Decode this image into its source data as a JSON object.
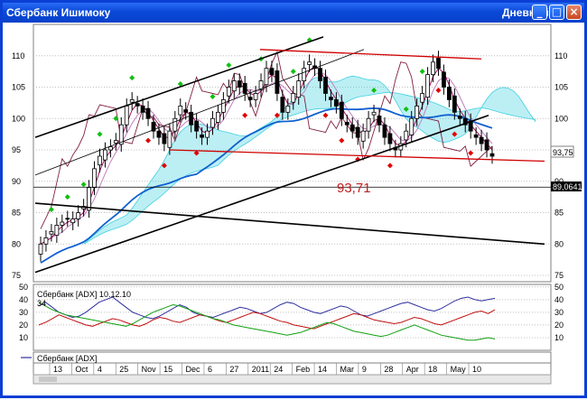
{
  "window": {
    "title": "Сбербанк Ишимоку",
    "period": "Дневной",
    "buttons": [
      {
        "name": "minimize-button",
        "glyph": "_"
      },
      {
        "name": "maximize-button",
        "glyph": "□"
      },
      {
        "name": "close-button",
        "glyph": "×"
      }
    ]
  },
  "chart_data": [
    {
      "type": "candlestick",
      "panel": "price",
      "y_ticks": [
        75,
        80,
        85,
        90,
        95,
        100,
        105,
        110
      ],
      "ylim": [
        74,
        115
      ],
      "price_label_left": "93,71",
      "last_price_label": "93,75",
      "hline_label": "89,0641",
      "hline_value": 89.0641,
      "grid": "dotted",
      "colors": {
        "up": "#00a000",
        "down": "#000000",
        "tenkan": "#a01060",
        "kijun": "#c080c0",
        "cloud": "#40d0e0",
        "sma": "#1060d0",
        "lag": "#802040",
        "trend_black": "#000000",
        "trend_red": "#d00000",
        "marker_up": "#10c010",
        "marker_down": "#e00000"
      },
      "approx_close_series": [
        80,
        81,
        82,
        83,
        83.5,
        84,
        84,
        85,
        86,
        89,
        92,
        94,
        95,
        95.5,
        96.5,
        99,
        102,
        103,
        102,
        101,
        100,
        98,
        97,
        96,
        98,
        100,
        102,
        101,
        99,
        98,
        97,
        98,
        100,
        101,
        103,
        105,
        106,
        105,
        104,
        103,
        104,
        106,
        108,
        107,
        104,
        101,
        102,
        104,
        106,
        108,
        109,
        108,
        106,
        104,
        103,
        102,
        100,
        99,
        98,
        97,
        98,
        100,
        101,
        99,
        97,
        96,
        95,
        96,
        98,
        100,
        102,
        104,
        107,
        109,
        108,
        105,
        103,
        101,
        100,
        99,
        98,
        97,
        96,
        95,
        94
      ]
    },
    {
      "type": "line",
      "panel": "indicator",
      "title": "Сбербанк [ADX] 10.12.10",
      "subtitle_value": "34",
      "legend": "Сбербанк [ADX]",
      "y_ticks": [
        10,
        20,
        30,
        40,
        50
      ],
      "ylim": [
        0,
        52
      ],
      "x_labels": [
        "13",
        "Oct",
        "4",
        "25",
        "Nov",
        "15",
        "Dec",
        "6",
        "27",
        "2011",
        "24",
        "Feb",
        "14",
        "Mar",
        "9",
        "28",
        "Apr",
        "18",
        "May",
        "10"
      ],
      "series_colors": [
        "#3030a0",
        "#c01010",
        "#10a010"
      ],
      "approx_series": [
        [
          35,
          38,
          34,
          30,
          28,
          26,
          27,
          30,
          34,
          38,
          40,
          42,
          38,
          34,
          30,
          28,
          26,
          25,
          27,
          30,
          33,
          36,
          34,
          30,
          28,
          27,
          26,
          28,
          30,
          32,
          34,
          33,
          31,
          29,
          30,
          33,
          36,
          38,
          37,
          34,
          32,
          30,
          29,
          31,
          33,
          35,
          34,
          31,
          28,
          27,
          29,
          31,
          33,
          35,
          37,
          38,
          36,
          34,
          32,
          31,
          33,
          36,
          39,
          41,
          42,
          40,
          39,
          40,
          41
        ],
        [
          20,
          22,
          25,
          28,
          26,
          24,
          22,
          20,
          19,
          21,
          23,
          25,
          24,
          22,
          20,
          19,
          21,
          24,
          26,
          25,
          23,
          22,
          24,
          26,
          28,
          27,
          25,
          23,
          22,
          24,
          26,
          28,
          30,
          29,
          27,
          25,
          23,
          22,
          20,
          19,
          18,
          17,
          19,
          21,
          23,
          25,
          27,
          29,
          28,
          26,
          24,
          23,
          22,
          21,
          22,
          24,
          26,
          25,
          23,
          21,
          20,
          22,
          24,
          26,
          28,
          30,
          31,
          29,
          32
        ],
        [
          38,
          35,
          32,
          30,
          28,
          27,
          26,
          25,
          24,
          23,
          22,
          21,
          20,
          19,
          21,
          24,
          27,
          30,
          32,
          34,
          36,
          35,
          33,
          31,
          29,
          27,
          25,
          24,
          22,
          20,
          19,
          18,
          17,
          16,
          15,
          14,
          13,
          12,
          13,
          14,
          16,
          18,
          20,
          22,
          21,
          19,
          17,
          15,
          14,
          13,
          12,
          11,
          12,
          14,
          16,
          18,
          20,
          18,
          16,
          14,
          12,
          11,
          10,
          9,
          8,
          8,
          9,
          10,
          9
        ]
      ]
    }
  ]
}
